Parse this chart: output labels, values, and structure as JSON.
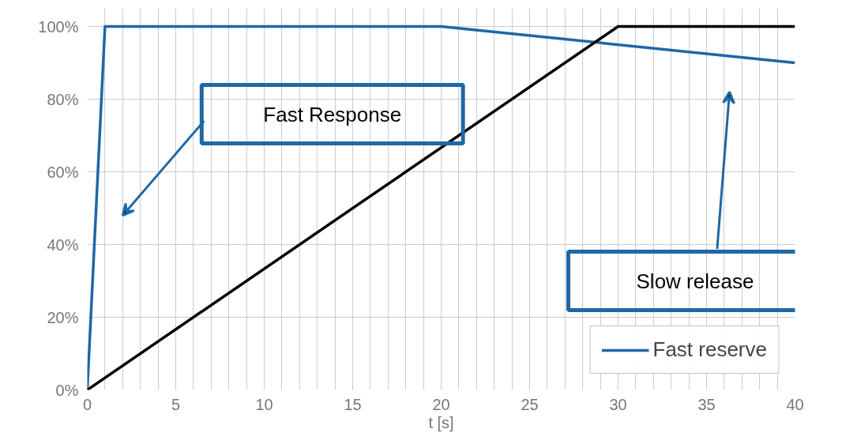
{
  "chart_data": {
    "type": "line",
    "xlabel": "t [s]",
    "xlim": [
      0,
      40
    ],
    "ylim": [
      0,
      105
    ],
    "xticks": [
      0,
      5,
      10,
      15,
      20,
      25,
      30,
      35,
      40
    ],
    "yticks": [
      {
        "value": 0,
        "label": "0%"
      },
      {
        "value": 20,
        "label": "20%"
      },
      {
        "value": 40,
        "label": "40%"
      },
      {
        "value": 60,
        "label": "60%"
      },
      {
        "value": 80,
        "label": "80%"
      },
      {
        "value": 100,
        "label": "100%"
      }
    ],
    "series": [
      {
        "name": "Fast reserve",
        "color": "#1f67a5",
        "x": [
          0,
          1,
          20,
          40
        ],
        "values": [
          0,
          100,
          100,
          90
        ]
      },
      {
        "color": "#000000",
        "x": [
          0,
          30,
          40
        ],
        "values": [
          0,
          100,
          100
        ]
      }
    ],
    "annotations": [
      "Fast Response",
      "Slow release"
    ],
    "grid": true,
    "legend": "bottom right",
    "marker": "none",
    "line_style": "solid"
  }
}
